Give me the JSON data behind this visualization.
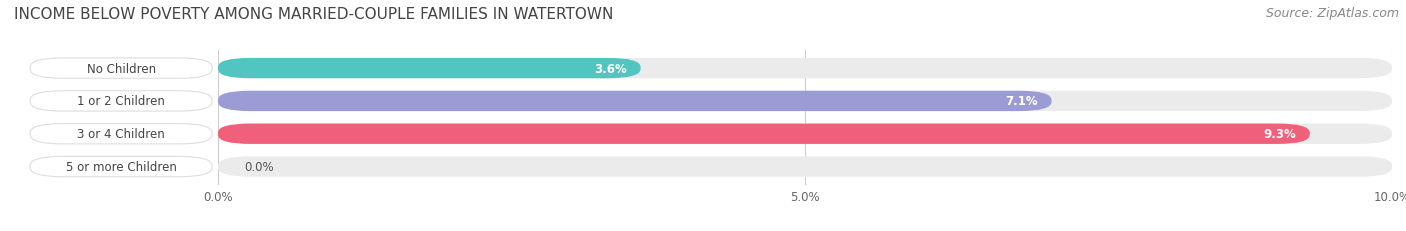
{
  "title": "INCOME BELOW POVERTY AMONG MARRIED-COUPLE FAMILIES IN WATERTOWN",
  "source": "Source: ZipAtlas.com",
  "categories": [
    "No Children",
    "1 or 2 Children",
    "3 or 4 Children",
    "5 or more Children"
  ],
  "values": [
    3.6,
    7.1,
    9.3,
    0.0
  ],
  "bar_colors": [
    "#52C5C0",
    "#9B9BD6",
    "#F0607A",
    "#F5C89A"
  ],
  "xlim": [
    0,
    10.0
  ],
  "xticks": [
    0.0,
    5.0,
    10.0
  ],
  "xtick_labels": [
    "0.0%",
    "5.0%",
    "10.0%"
  ],
  "title_fontsize": 11,
  "source_fontsize": 9,
  "bar_height": 0.62,
  "fig_bg_color": "#FFFFFF",
  "bar_bg_color": "#EBEBEB",
  "label_box_color": "#FFFFFF",
  "label_text_color": "#444444",
  "value_text_color_inside": "#FFFFFF",
  "value_text_color_outside": "#555555",
  "grid_color": "#CCCCCC",
  "title_color": "#444444",
  "source_color": "#888888"
}
